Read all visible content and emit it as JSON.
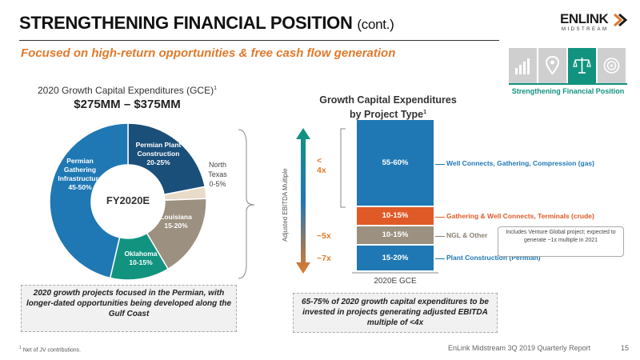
{
  "header": {
    "title": "STRENGTHENING FINANCIAL POSITION",
    "title_suffix": "(cont.)",
    "subtitle": "Focused on high-return opportunities & free cash flow generation"
  },
  "logo": {
    "word": "ENLINK",
    "sub": "MIDSTREAM"
  },
  "nav": {
    "tiles": [
      "chart-icon",
      "location-icon",
      "scales-icon",
      "target-icon"
    ],
    "active_index": 2,
    "active_caption": "Strengthening Financial Position"
  },
  "left": {
    "gce_label": "2020 Growth Capital Expenditures (GCE)",
    "gce_sup": "1",
    "gce_range": "$275MM – $375MM",
    "center_label": "FY2020E",
    "callout": "2020 growth projects focused in the Permian, with longer-dated opportunities being developed along the Gulf Coast"
  },
  "chart_data": [
    {
      "type": "pie",
      "center_label": "FY2020E",
      "slices": [
        {
          "name": "Permian Plant Construction",
          "value_label": "20-25%",
          "value": 22.5,
          "color": "#1a4f7a"
        },
        {
          "name": "North Texas",
          "value_label": "0-5%",
          "value": 2.5,
          "color": "#e8dcc8"
        },
        {
          "name": "Louisiana",
          "value_label": "15-20%",
          "value": 17.5,
          "color": "#9c9080"
        },
        {
          "name": "Oklahoma",
          "value_label": "10-15%",
          "value": 12.5,
          "color": "#12937f"
        },
        {
          "name": "Permian Gathering Infrastructure",
          "value_label": "45-50%",
          "value": 47.5,
          "color": "#1f78b4"
        }
      ]
    },
    {
      "type": "bar",
      "title": "Growth Capital Expenditures by Project Type",
      "title_line1": "Growth Capital Expenditures",
      "title_line2": "by Project Type",
      "title_sup": "1",
      "ylabel": "Adjusted EBITDA Multiple",
      "category": "2020E GCE",
      "segments": [
        {
          "name": "Plant Construction (Permian)",
          "value_label": "15-20%",
          "value": 17.5,
          "multiple": "~7x",
          "color": "#1f78b4",
          "desc_color": "#1f78b4"
        },
        {
          "name": "NGL & Other",
          "value_label": "10-15%",
          "value": 12.5,
          "multiple": "~5x",
          "color": "#9c9080",
          "desc_color": "#8a8070"
        },
        {
          "name": "Gathering & Well Connects, Terminals (crude)",
          "value_label": "10-15%",
          "value": 12.5,
          "multiple": "",
          "color": "#e05a28",
          "desc_color": "#e05a28"
        },
        {
          "name": "Well Connects, Gathering, Compression (gas)",
          "value_label": "55-60%",
          "value": 57.5,
          "multiple": "< 4x",
          "color": "#1f78b4",
          "desc_color": "#1f78b4"
        }
      ]
    }
  ],
  "right": {
    "note": "Includes Venture Global project; expected to generate ~1x multiple in 2021",
    "callout": "65-75% of 2020 growth capital expenditures to be invested in projects generating adjusted EBITDA multiple of <4x"
  },
  "footer": {
    "footnote_sup": "1",
    "footnote": "Net of JV contributions.",
    "report": "EnLink Midstream 3Q 2019 Quarterly Report",
    "page": "15"
  }
}
